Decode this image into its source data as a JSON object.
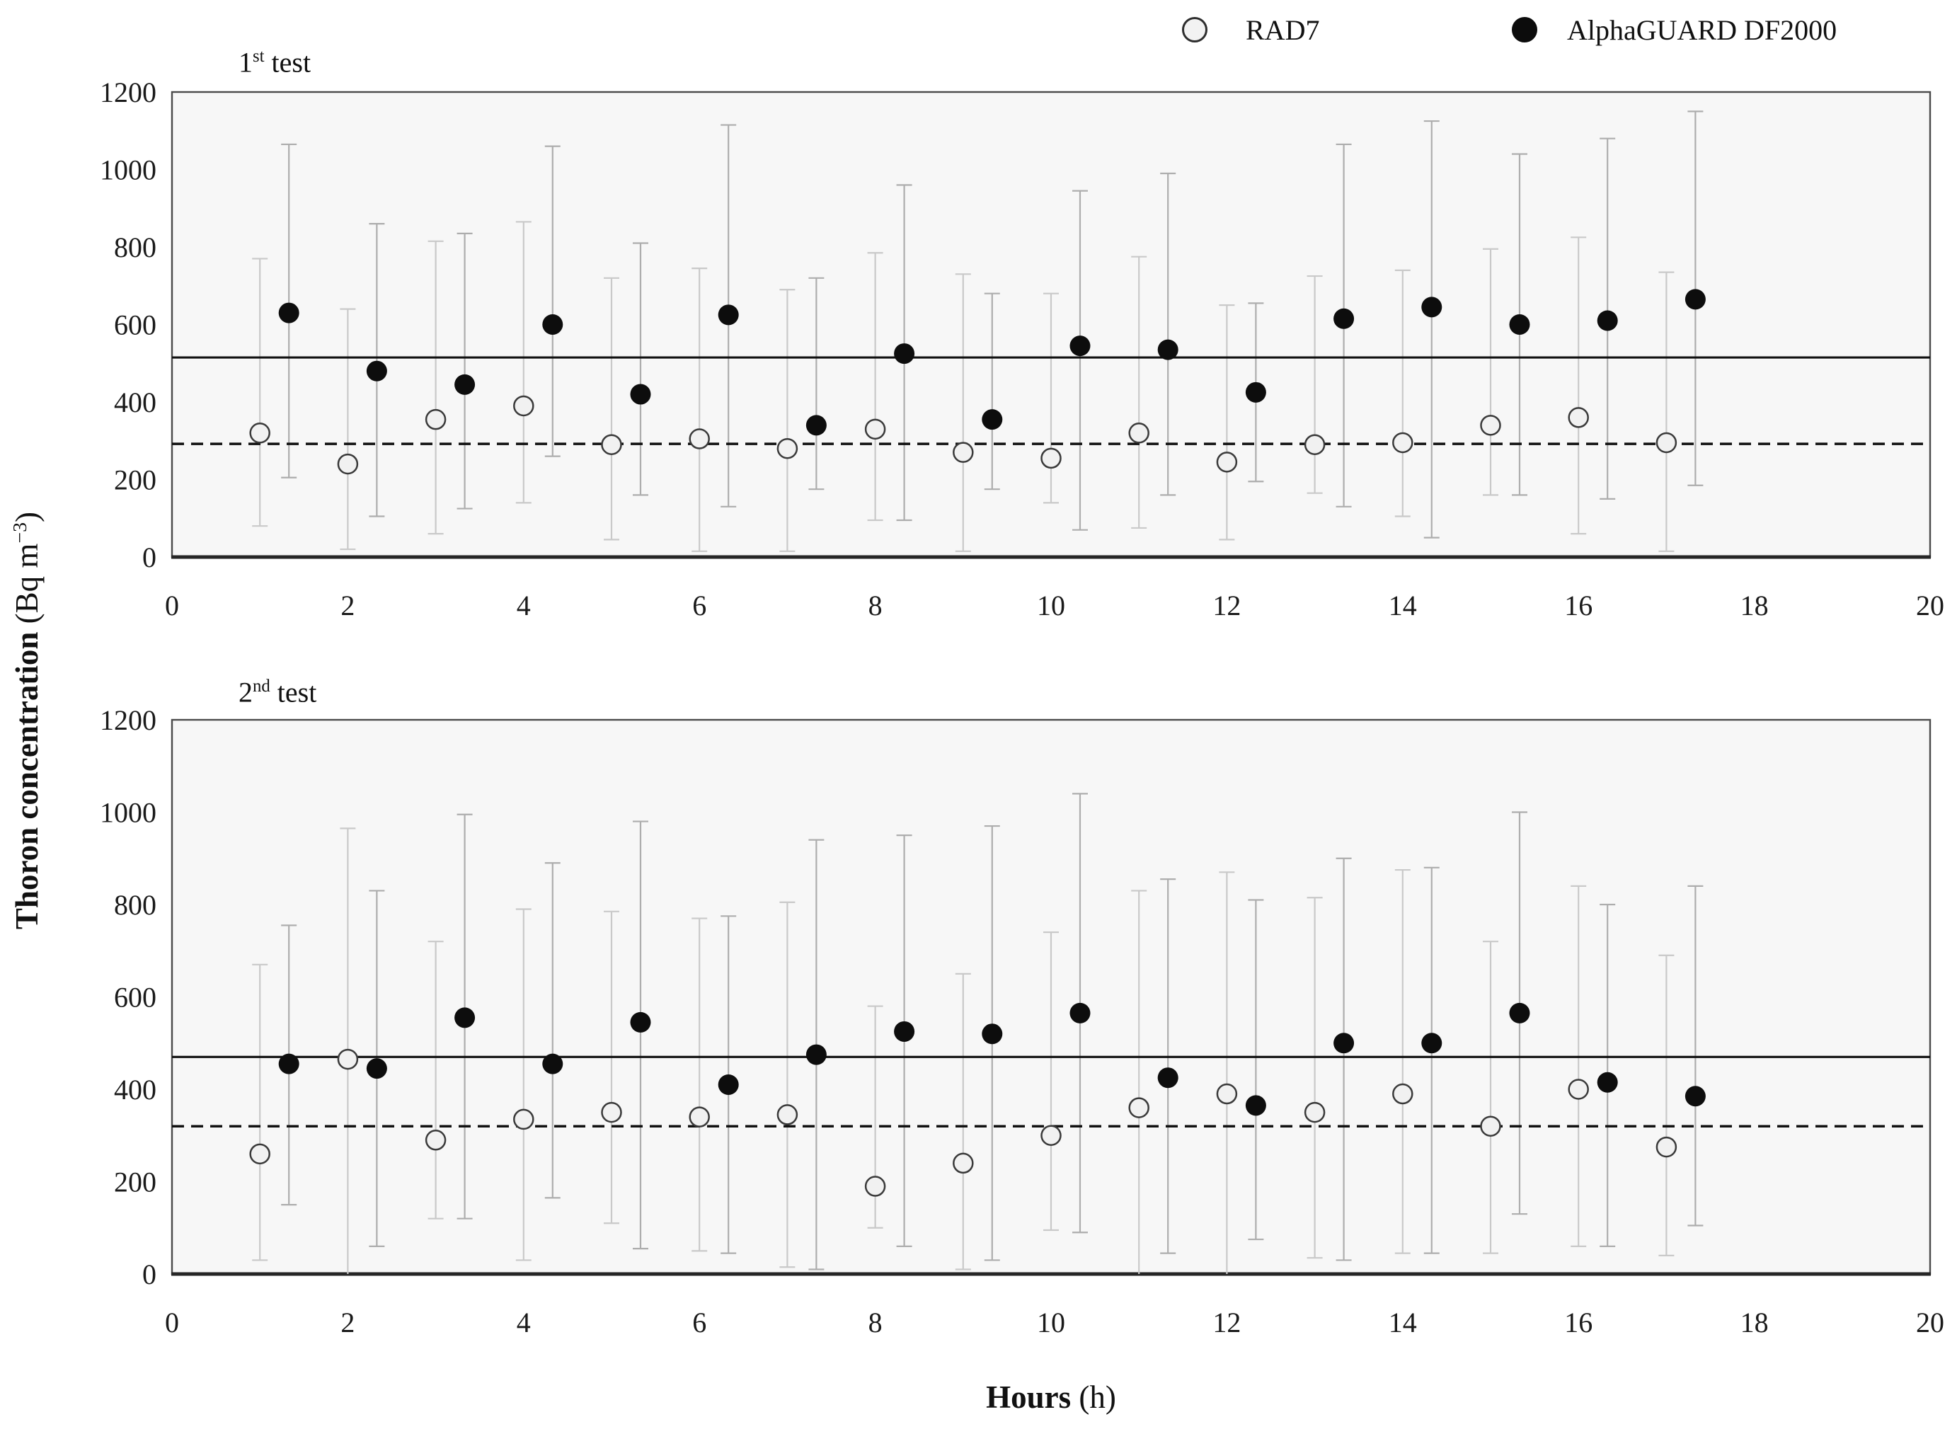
{
  "legend": {
    "items": [
      {
        "label": "RAD7",
        "marker": "open-circle"
      },
      {
        "label": "AlphaGUARD DF2000",
        "marker": "filled-circle"
      }
    ]
  },
  "y_axis_title": {
    "main": "Thoron concentration",
    "unit_pre": " (Bq m",
    "unit_sup": "−3",
    "unit_post": ")"
  },
  "x_axis_title": {
    "main": "Hours",
    "unit": " (h)"
  },
  "colors": {
    "plot_bg": "#f7f7f7",
    "plot_border": "#4a4a4a",
    "axis_bottom": "#262626",
    "rad7_bar": "#c9c9c9",
    "alphaguard_bar": "#adadad",
    "rad7_fill": "#f1f1f1",
    "rad7_stroke": "#3a3a3a",
    "alphaguard_fill": "#0d0d0d",
    "ref_line": "#111111",
    "tick_text": "#1a1a1a"
  },
  "chart_data": [
    {
      "type": "scatter",
      "title": {
        "num": "1",
        "sup": "st",
        "rest": " test"
      },
      "xlim": [
        0,
        20
      ],
      "ylim": [
        0,
        1200
      ],
      "x_ticks": [
        0,
        2,
        4,
        6,
        8,
        10,
        12,
        14,
        16,
        18,
        20
      ],
      "y_ticks": [
        0,
        200,
        400,
        600,
        800,
        1000,
        1200
      ],
      "grid": false,
      "reference_lines": {
        "solid_mean": 515,
        "dashed_mean": 292
      },
      "series": [
        {
          "name": "RAD7",
          "x_offset": 0,
          "x": [
            1,
            2,
            3,
            4,
            5,
            6,
            7,
            8,
            9,
            10,
            11,
            12,
            13,
            14,
            15,
            16,
            17
          ],
          "y": [
            320,
            240,
            355,
            390,
            290,
            305,
            280,
            330,
            270,
            255,
            320,
            245,
            290,
            295,
            340,
            360,
            295
          ],
          "err_low": [
            80,
            20,
            60,
            140,
            45,
            15,
            15,
            95,
            15,
            140,
            75,
            45,
            165,
            105,
            160,
            60,
            15
          ],
          "err_high": [
            770,
            640,
            815,
            865,
            720,
            745,
            690,
            785,
            730,
            680,
            775,
            650,
            725,
            740,
            795,
            825,
            735
          ]
        },
        {
          "name": "AlphaGUARD DF2000",
          "x_offset": 0.33,
          "x": [
            1,
            2,
            3,
            4,
            5,
            6,
            7,
            8,
            9,
            10,
            11,
            12,
            13,
            14,
            15,
            16,
            17
          ],
          "y": [
            630,
            480,
            445,
            600,
            420,
            625,
            340,
            525,
            355,
            545,
            535,
            425,
            615,
            645,
            600,
            610,
            665
          ],
          "err_low": [
            205,
            105,
            125,
            260,
            160,
            130,
            175,
            95,
            175,
            70,
            160,
            195,
            130,
            50,
            160,
            150,
            185
          ],
          "err_high": [
            1065,
            860,
            835,
            1060,
            810,
            1115,
            720,
            960,
            680,
            945,
            990,
            655,
            1065,
            1125,
            1040,
            1080,
            1150
          ]
        }
      ]
    },
    {
      "type": "scatter",
      "title": {
        "num": "2",
        "sup": "nd",
        "rest": " test"
      },
      "xlim": [
        0,
        20
      ],
      "ylim": [
        0,
        1200
      ],
      "x_ticks": [
        0,
        2,
        4,
        6,
        8,
        10,
        12,
        14,
        16,
        18,
        20
      ],
      "y_ticks": [
        0,
        200,
        400,
        600,
        800,
        1000,
        1200
      ],
      "grid": false,
      "reference_lines": {
        "solid_mean": 470,
        "dashed_mean": 320
      },
      "series": [
        {
          "name": "RAD7",
          "x_offset": 0,
          "x": [
            1,
            2,
            3,
            4,
            5,
            6,
            7,
            8,
            9,
            10,
            11,
            12,
            13,
            14,
            15,
            16,
            17
          ],
          "y": [
            260,
            465,
            290,
            335,
            350,
            340,
            345,
            190,
            240,
            300,
            360,
            390,
            350,
            390,
            320,
            400,
            275
          ],
          "err_low": [
            30,
            0,
            120,
            30,
            110,
            50,
            15,
            100,
            10,
            95,
            0,
            0,
            35,
            45,
            45,
            60,
            40
          ],
          "err_high": [
            670,
            965,
            720,
            790,
            785,
            770,
            805,
            580,
            650,
            740,
            830,
            870,
            815,
            875,
            720,
            840,
            690
          ]
        },
        {
          "name": "AlphaGUARD DF2000",
          "x_offset": 0.33,
          "x": [
            1,
            2,
            3,
            4,
            5,
            6,
            7,
            8,
            9,
            10,
            11,
            12,
            13,
            14,
            15,
            16,
            17
          ],
          "y": [
            455,
            445,
            555,
            455,
            545,
            410,
            475,
            525,
            520,
            565,
            425,
            365,
            500,
            500,
            565,
            415,
            385
          ],
          "err_low": [
            150,
            60,
            120,
            165,
            55,
            45,
            10,
            60,
            30,
            90,
            45,
            75,
            30,
            45,
            130,
            60,
            105
          ],
          "err_high": [
            755,
            830,
            995,
            890,
            980,
            775,
            940,
            950,
            970,
            1040,
            855,
            810,
            900,
            880,
            1000,
            800,
            840
          ]
        }
      ]
    }
  ]
}
